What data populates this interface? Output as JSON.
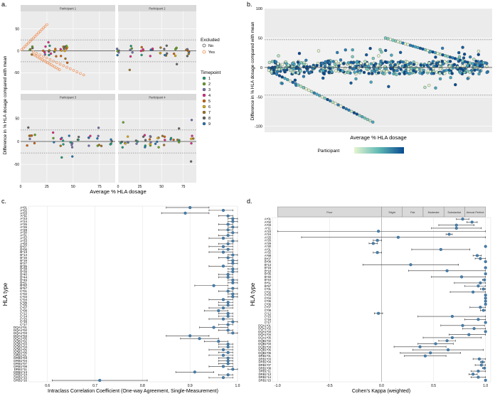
{
  "colors": {
    "panel_bg": "#ebebeb",
    "strip_bg": "#d9d9d9",
    "grid": "#ffffff",
    "band": "#f2f2f2",
    "point": "#4a7ea8",
    "point_dark": "#1d5a8a",
    "excluded_no": "#555555",
    "excluded_yes": "#f08a4b",
    "timepoints": [
      "#1b9e77",
      "#66a61e",
      "#7570b3",
      "#e7298a",
      "#d95f02",
      "#e6ab02",
      "#a6761d",
      "#666666",
      "#1f78b4"
    ],
    "gradient_low": "#e5f5d0",
    "gradient_high": "#084a91"
  },
  "panel_labels": {
    "a": "a.",
    "b": "b.",
    "c": "c.",
    "d": "d."
  },
  "chart_data": [
    {
      "id": "a",
      "type": "scatter",
      "facets": [
        "Participant 1",
        "Participant 2",
        "Participant 3",
        "Participant 4"
      ],
      "xlabel": "Average % HLA dosage",
      "ylabel": "Difference in % HLA dosage compared with mean",
      "xlim": [
        0,
        90
      ],
      "ylim": [
        -90,
        90
      ],
      "x_ticks": [
        0,
        25,
        50,
        75
      ],
      "y_ticks": [
        -50,
        0,
        50
      ],
      "ref_lines": [
        0,
        25,
        -25
      ],
      "legend_excluded_title": "Excluded",
      "legend_excluded": [
        "No",
        "Yes"
      ],
      "legend_timepoint_title": "Timepoint",
      "legend_timepoints": [
        "1",
        "2",
        "3",
        "4",
        "5",
        "6",
        "7",
        "8",
        "9"
      ]
    },
    {
      "id": "b",
      "type": "scatter",
      "xlabel": "Average % HLA dosage",
      "ylabel": "Difference in % HLA dosage compared with mean",
      "ylim": [
        -110,
        100
      ],
      "y_ticks": [
        -100,
        -50,
        0,
        50,
        100
      ],
      "ref_lines": [
        0,
        47,
        -47
      ],
      "legend_title": "Participant"
    },
    {
      "id": "c",
      "type": "forest",
      "ylabel": "HLA type",
      "xlabel": "Intraclass Correlation Coefficient (One-way Agreement, Single-Measurement)",
      "xlim": [
        0.56,
        1.0
      ],
      "x_ticks": [
        0.6,
        0.7,
        0.8,
        0.9,
        1.0
      ],
      "x_tick_labels": [
        "0.6",
        "0.7",
        "0.8",
        "0.9",
        "1.0"
      ],
      "categories": [
        "A*01",
        "A*02",
        "A*03",
        "A*11",
        "A*23",
        "A*24",
        "A*25",
        "A*26",
        "A*29",
        "A*30",
        "A*31",
        "A*32",
        "A*33",
        "A*68",
        "B*07",
        "B*08",
        "B*13",
        "B*14",
        "B*15",
        "B*18",
        "B*27",
        "B*35",
        "B*38",
        "B*39",
        "B*40",
        "B*44",
        "B*49",
        "B*51",
        "B*52",
        "B*57",
        "C*01",
        "C*02",
        "C*03",
        "C*04",
        "C*05",
        "C*06",
        "C*07",
        "C*08",
        "C*12",
        "C*14",
        "C*15",
        "C*16",
        "C*17",
        "DQA1*01",
        "DQA1*02",
        "DQA1*03",
        "DQA1*04",
        "DQA1*05",
        "DQB1*02",
        "DQB1*03",
        "DQB1*04",
        "DQB1*05",
        "DQB1*06",
        "DRB1*01",
        "DRB1*03",
        "DRB1*04",
        "DRB1*07",
        "DRB1*08",
        "DRB1*11",
        "DRB1*13",
        "DRB1*14",
        "DRB1*15",
        "DRB1*16"
      ],
      "estimates": [
        0.9,
        0.97,
        0.89,
        0.98,
        0.99,
        0.99,
        0.98,
        0.99,
        0.98,
        0.99,
        0.98,
        0.97,
        0.99,
        0.98,
        0.97,
        0.98,
        0.97,
        0.99,
        0.98,
        0.99,
        0.99,
        0.97,
        0.99,
        0.99,
        0.98,
        0.98,
        0.99,
        0.99,
        0.95,
        0.99,
        0.98,
        0.99,
        0.99,
        0.97,
        0.98,
        0.98,
        0.97,
        0.96,
        0.98,
        0.98,
        0.97,
        0.99,
        0.98,
        0.95,
        0.98,
        0.99,
        0.9,
        0.92,
        0.96,
        0.98,
        0.98,
        0.97,
        0.98,
        0.97,
        0.98,
        0.98,
        0.98,
        0.97,
        0.99,
        0.91,
        0.98,
        0.97,
        0.71
      ],
      "lower": [
        0.85,
        0.94,
        0.84,
        0.96,
        0.98,
        0.98,
        0.96,
        0.98,
        0.96,
        0.98,
        0.96,
        0.94,
        0.98,
        0.96,
        0.94,
        0.96,
        0.94,
        0.98,
        0.96,
        0.98,
        0.98,
        0.94,
        0.98,
        0.98,
        0.96,
        0.96,
        0.98,
        0.98,
        0.91,
        0.98,
        0.96,
        0.98,
        0.98,
        0.94,
        0.96,
        0.96,
        0.94,
        0.93,
        0.96,
        0.96,
        0.94,
        0.98,
        0.96,
        0.92,
        0.96,
        0.98,
        0.85,
        0.88,
        0.93,
        0.96,
        0.96,
        0.94,
        0.96,
        0.94,
        0.96,
        0.96,
        0.96,
        0.94,
        0.98,
        0.87,
        0.96,
        0.94,
        0.61
      ],
      "upper": [
        0.94,
        0.99,
        0.94,
        0.99,
        1.0,
        1.0,
        0.99,
        1.0,
        0.99,
        1.0,
        0.99,
        0.99,
        1.0,
        0.99,
        0.99,
        0.99,
        0.99,
        1.0,
        0.99,
        1.0,
        1.0,
        0.99,
        1.0,
        1.0,
        0.99,
        0.99,
        1.0,
        1.0,
        0.98,
        1.0,
        0.99,
        1.0,
        1.0,
        0.99,
        0.99,
        0.99,
        0.99,
        0.98,
        0.99,
        0.99,
        0.99,
        1.0,
        0.99,
        0.98,
        0.99,
        1.0,
        0.94,
        0.96,
        0.98,
        0.99,
        0.99,
        0.99,
        0.99,
        0.99,
        0.99,
        0.99,
        0.99,
        0.99,
        1.0,
        0.95,
        0.99,
        0.99,
        0.81
      ]
    },
    {
      "id": "d",
      "type": "forest",
      "ylabel": "HLA type",
      "xlabel": "Cohen's Kappa (weighted)",
      "xlim": [
        -1.05,
        1.05
      ],
      "x_ticks": [
        -1.0,
        -0.5,
        0.0,
        0.5,
        1.0
      ],
      "x_tick_labels": [
        "-1.0",
        "-0.5",
        "0.0",
        "0.5",
        "1.0"
      ],
      "bands": [
        {
          "label": "Poor",
          "from": -1.0,
          "to": 0.0
        },
        {
          "label": "Slight",
          "from": 0.0,
          "to": 0.2
        },
        {
          "label": "Fair",
          "from": 0.2,
          "to": 0.4
        },
        {
          "label": "Moderate",
          "from": 0.4,
          "to": 0.6
        },
        {
          "label": "Substantial",
          "from": 0.6,
          "to": 0.8
        },
        {
          "label": "Almost Perfect",
          "from": 0.8,
          "to": 1.0
        }
      ],
      "categories": [
        "A*01",
        "A*02",
        "A*03",
        "A*11",
        "A*23",
        "A*24",
        "A*25",
        "A*26",
        "A*29",
        "A*30",
        "A*31",
        "A*32",
        "A*68",
        "B*07",
        "B*08",
        "B*13",
        "B*15",
        "B*18",
        "B*35",
        "B*40",
        "B*44",
        "B*51",
        "B*57",
        "C*01",
        "C*02",
        "C*03",
        "C*04",
        "C*05",
        "C*06",
        "C*07",
        "C*08",
        "C*12",
        "C*15",
        "C*16",
        "C*17",
        "DQA1*01",
        "DQA1*02",
        "DQA1*03",
        "DQA1*04",
        "DQA1*05",
        "DQB1*02",
        "DQB1*03",
        "DQB1*04",
        "DQB1*05",
        "DQB1*06",
        "DRB1*01",
        "DRB1*03",
        "DRB1*04",
        "DRB1*07",
        "DRB1*08",
        "DRB1*11",
        "DRB1*13",
        "DRB1*14",
        "DRB1*15"
      ],
      "estimates": [
        0.78,
        0.87,
        0.72,
        0.72,
        -0.03,
        0.65,
        0.16,
        -0.04,
        -0.08,
        1.0,
        0.57,
        -0.04,
        0.92,
        0.95,
        1.0,
        0.28,
        1.0,
        0.63,
        1.0,
        0.77,
        0.99,
        0.95,
        0.93,
        0.98,
        0.88,
        1.0,
        1.0,
        1.0,
        1.0,
        0.95,
        0.98,
        -0.03,
        0.68,
        0.93,
        1.0,
        0.78,
        0.89,
        1.0,
        0.84,
        0.68,
        0.63,
        0.52,
        0.37,
        0.64,
        0.47,
        0.42,
        0.94,
        0.97,
        0.96,
        0.99,
        0.93,
        0.88,
        0.93,
        1.0
      ],
      "lower": [
        0.72,
        0.82,
        0.55,
        0.48,
        -1.0,
        0.62,
        -0.77,
        -0.08,
        -0.12,
        1.0,
        0.29,
        -0.08,
        0.88,
        0.9,
        1.0,
        -0.18,
        1.0,
        0.26,
        1.0,
        0.48,
        0.97,
        0.7,
        0.8,
        0.95,
        0.66,
        1.0,
        1.0,
        1.0,
        1.0,
        0.85,
        0.95,
        -0.07,
        0.35,
        0.8,
        1.0,
        0.57,
        0.78,
        1.0,
        0.65,
        0.4,
        0.55,
        0.35,
        0.12,
        0.3,
        0.18,
        0.22,
        0.88,
        0.95,
        0.9,
        0.97,
        0.86,
        0.84,
        0.86,
        1.0
      ],
      "upper": [
        0.84,
        0.92,
        0.89,
        0.96,
        1.0,
        0.68,
        1.0,
        0.0,
        -0.04,
        1.0,
        0.85,
        0.0,
        0.96,
        1.0,
        1.0,
        0.74,
        1.0,
        1.0,
        1.0,
        1.0,
        1.0,
        1.0,
        1.0,
        1.0,
        1.0,
        1.0,
        1.0,
        1.0,
        1.0,
        1.0,
        1.0,
        0.01,
        1.0,
        1.0,
        1.0,
        0.99,
        1.0,
        1.0,
        1.0,
        0.96,
        0.71,
        0.69,
        0.62,
        0.98,
        0.76,
        0.62,
        1.0,
        0.99,
        1.0,
        1.0,
        1.0,
        0.92,
        1.0,
        1.0
      ]
    }
  ]
}
